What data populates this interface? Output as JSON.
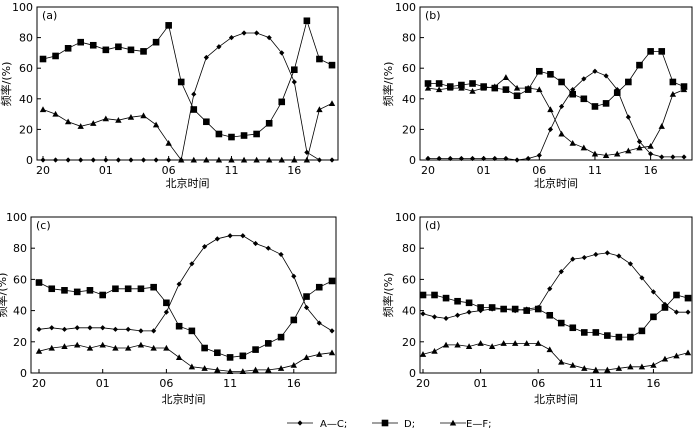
{
  "legend": [
    {
      "marker": "diamond",
      "label": "A—C;"
    },
    {
      "marker": "square",
      "label": "D;"
    },
    {
      "marker": "triangle",
      "label": "E—F;"
    }
  ],
  "chart_data": [
    {
      "type": "line",
      "panel_label": "(a)",
      "xlabel": "北京时间",
      "ylabel": "频率/(%)",
      "xtick_labels": [
        "20",
        "01",
        "06",
        "11",
        "16"
      ],
      "xtick_index": [
        0,
        5,
        10,
        15,
        20
      ],
      "yticks": [
        0,
        20,
        40,
        60,
        80,
        100
      ],
      "ylim": [
        0,
        100
      ],
      "n_points": 24,
      "series": [
        {
          "marker": "diamond",
          "values": [
            0,
            0,
            0,
            0,
            0,
            0,
            0,
            0,
            0,
            0,
            0,
            0,
            43,
            67,
            74,
            80,
            83,
            83,
            80,
            70,
            51,
            5,
            0,
            0
          ]
        },
        {
          "marker": "square",
          "values": [
            66,
            68,
            73,
            77,
            75,
            72,
            74,
            72,
            71,
            77,
            88,
            51,
            33,
            25,
            17,
            15,
            16,
            17,
            24,
            38,
            59,
            91,
            66,
            62
          ]
        },
        {
          "marker": "triangle",
          "values": [
            33,
            30,
            25,
            22,
            24,
            27,
            26,
            28,
            29,
            23,
            11,
            0,
            0,
            0,
            0,
            0,
            0,
            0,
            0,
            0,
            0,
            0,
            33,
            37
          ]
        }
      ]
    },
    {
      "type": "line",
      "panel_label": "(b)",
      "xlabel": "北京时间",
      "ylabel": "频率/(%)",
      "xtick_labels": [
        "20",
        "01",
        "06",
        "11",
        "16"
      ],
      "xtick_index": [
        0,
        5,
        10,
        15,
        20
      ],
      "yticks": [
        0,
        20,
        40,
        60,
        80,
        100
      ],
      "ylim": [
        0,
        100
      ],
      "n_points": 24,
      "series": [
        {
          "marker": "diamond",
          "values": [
            1,
            1,
            1,
            1,
            1,
            1,
            1,
            1,
            0,
            1,
            3,
            20,
            35,
            46,
            53,
            58,
            55,
            46,
            28,
            12,
            4,
            2,
            2,
            2
          ]
        },
        {
          "marker": "square",
          "values": [
            50,
            50,
            48,
            49,
            50,
            48,
            47,
            46,
            42,
            46,
            58,
            56,
            51,
            43,
            40,
            35,
            37,
            44,
            51,
            62,
            71,
            71,
            51,
            48
          ]
        },
        {
          "marker": "triangle",
          "values": [
            47,
            46,
            47,
            47,
            45,
            47,
            48,
            54,
            47,
            47,
            46,
            33,
            17,
            11,
            8,
            4,
            3,
            4,
            6,
            8,
            9,
            22,
            43,
            46
          ]
        }
      ]
    },
    {
      "type": "line",
      "panel_label": "(c)",
      "xlabel": "北京时间",
      "ylabel": "频率/(%)",
      "xtick_labels": [
        "20",
        "01",
        "06",
        "11",
        "16"
      ],
      "xtick_index": [
        0,
        5,
        10,
        15,
        20
      ],
      "yticks": [
        0,
        20,
        40,
        60,
        80,
        100
      ],
      "ylim": [
        0,
        100
      ],
      "n_points": 24,
      "series": [
        {
          "marker": "diamond",
          "values": [
            28,
            29,
            28,
            29,
            29,
            29,
            28,
            28,
            27,
            27,
            39,
            57,
            70,
            81,
            86,
            88,
            88,
            83,
            80,
            76,
            62,
            42,
            32,
            27
          ]
        },
        {
          "marker": "square",
          "values": [
            58,
            54,
            53,
            52,
            53,
            50,
            54,
            54,
            54,
            55,
            45,
            30,
            27,
            16,
            13,
            10,
            11,
            15,
            19,
            23,
            34,
            49,
            55,
            59
          ]
        },
        {
          "marker": "triangle",
          "values": [
            14,
            16,
            17,
            18,
            16,
            18,
            16,
            16,
            18,
            16,
            16,
            10,
            4,
            3,
            2,
            1,
            1,
            2,
            2,
            3,
            5,
            10,
            12,
            13
          ]
        }
      ]
    },
    {
      "type": "line",
      "panel_label": "(d)",
      "xlabel": "北京时间",
      "ylabel": "频率/(%)",
      "xtick_labels": [
        "20",
        "01",
        "06",
        "11",
        "16"
      ],
      "xtick_index": [
        0,
        5,
        10,
        15,
        20
      ],
      "yticks": [
        0,
        20,
        40,
        60,
        80,
        100
      ],
      "ylim": [
        0,
        100
      ],
      "n_points": 24,
      "series": [
        {
          "marker": "diamond",
          "values": [
            38,
            36,
            35,
            37,
            39,
            40,
            41,
            41,
            40,
            41,
            42,
            54,
            65,
            73,
            74,
            76,
            77,
            75,
            70,
            61,
            52,
            44,
            39,
            39
          ]
        },
        {
          "marker": "square",
          "values": [
            50,
            50,
            48,
            46,
            45,
            42,
            42,
            41,
            41,
            40,
            41,
            37,
            32,
            29,
            26,
            26,
            24,
            23,
            23,
            27,
            36,
            42,
            50,
            48
          ]
        },
        {
          "marker": "triangle",
          "values": [
            12,
            14,
            18,
            18,
            17,
            19,
            17,
            19,
            19,
            19,
            19,
            15,
            7,
            5,
            3,
            2,
            2,
            3,
            4,
            4,
            5,
            9,
            11,
            13
          ]
        }
      ]
    }
  ]
}
